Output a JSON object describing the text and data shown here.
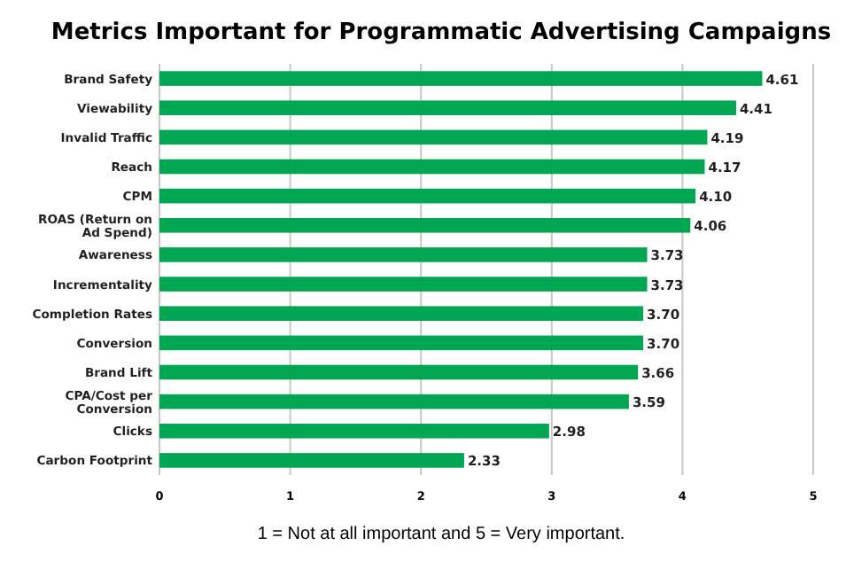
{
  "chart_data": {
    "type": "bar",
    "orientation": "horizontal",
    "title": "Metrics Important for Programmatic Advertising Campaigns",
    "categories": [
      "Brand Safety",
      "Viewability",
      "Invalid Traffic",
      "Reach",
      "CPM",
      "ROAS (Return on Ad Spend)",
      "Awareness",
      "Incrementality",
      "Completion Rates",
      "Conversion",
      "Brand Lift",
      "CPA/Cost per Conversion",
      "Clicks",
      "Carbon Footprint"
    ],
    "values": [
      4.61,
      4.41,
      4.19,
      4.17,
      4.1,
      4.06,
      3.73,
      3.73,
      3.7,
      3.7,
      3.66,
      3.59,
      2.98,
      2.33
    ],
    "value_labels": [
      "4.61",
      "4.41",
      "4.19",
      "4.17",
      "4.10",
      "4.06",
      "3.73",
      "3.73",
      "3.70",
      "3.70",
      "3.66",
      "3.59",
      "2.98",
      "2.33"
    ],
    "color": "#00a651",
    "xlim": [
      0,
      5
    ],
    "xticks": [
      0,
      1,
      2,
      3,
      4,
      5
    ],
    "grid": "x",
    "annotations": [
      "1 = Not at all important and 5 = Very important."
    ]
  }
}
